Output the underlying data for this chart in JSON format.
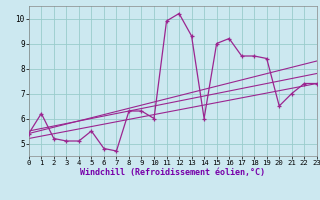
{
  "x": [
    0,
    1,
    2,
    3,
    4,
    5,
    6,
    7,
    8,
    9,
    10,
    11,
    12,
    13,
    14,
    15,
    16,
    17,
    18,
    19,
    20,
    21,
    22,
    23
  ],
  "y_main": [
    5.4,
    6.2,
    5.2,
    5.1,
    5.1,
    5.5,
    4.8,
    4.7,
    6.3,
    6.3,
    6.0,
    9.9,
    10.2,
    9.3,
    6.0,
    9.0,
    9.2,
    8.5,
    8.5,
    8.4,
    6.5,
    7.0,
    7.4,
    7.4
  ],
  "y_reg1_start": 5.4,
  "y_reg1_end": 8.3,
  "y_reg2_start": 5.5,
  "y_reg2_end": 7.8,
  "y_reg3_start": 5.2,
  "y_reg3_end": 7.4,
  "line_color": "#9b2590",
  "bg_color": "#cce8f0",
  "grid_color": "#99cccc",
  "xlabel": "Windchill (Refroidissement éolien,°C)",
  "xlim": [
    0,
    23
  ],
  "ylim": [
    4.5,
    10.5
  ],
  "yticks": [
    5,
    6,
    7,
    8,
    9,
    10
  ],
  "xticks": [
    0,
    1,
    2,
    3,
    4,
    5,
    6,
    7,
    8,
    9,
    10,
    11,
    12,
    13,
    14,
    15,
    16,
    17,
    18,
    19,
    20,
    21,
    22,
    23
  ]
}
